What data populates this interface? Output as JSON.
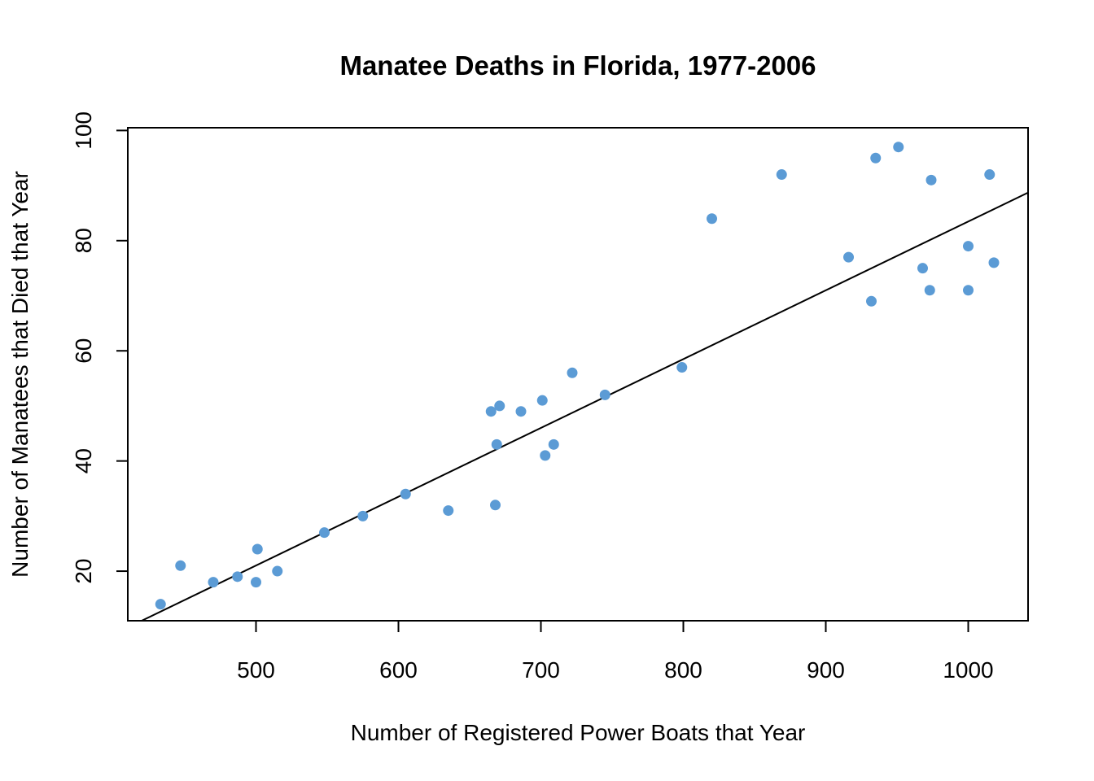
{
  "chart_data": {
    "type": "scatter",
    "title": "Manatee Deaths in Florida, 1977-2006",
    "xlabel": "Number of Registered Power Boats that Year",
    "ylabel": "Number of Manatees that Died that Year",
    "xlim": [
      410,
      1042
    ],
    "ylim": [
      11,
      100.5
    ],
    "xticks": [
      500,
      600,
      700,
      800,
      900,
      1000
    ],
    "xtick_labels": [
      "500",
      "600",
      "700",
      "800",
      "900",
      "1000"
    ],
    "yticks": [
      20,
      40,
      60,
      80,
      100
    ],
    "ytick_labels": [
      "20",
      "40",
      "60",
      "80",
      "100"
    ],
    "grid": false,
    "point_color": "#5b9bd5",
    "line_color": "#000000",
    "regression_line": {
      "intercept": -41.43,
      "slope": 0.1249
    },
    "points": [
      {
        "x": 433,
        "y": 14
      },
      {
        "x": 447,
        "y": 21
      },
      {
        "x": 470,
        "y": 18
      },
      {
        "x": 487,
        "y": 19
      },
      {
        "x": 500,
        "y": 18
      },
      {
        "x": 501,
        "y": 24
      },
      {
        "x": 515,
        "y": 20
      },
      {
        "x": 548,
        "y": 27
      },
      {
        "x": 575,
        "y": 30
      },
      {
        "x": 605,
        "y": 34
      },
      {
        "x": 635,
        "y": 31
      },
      {
        "x": 665,
        "y": 49
      },
      {
        "x": 668,
        "y": 32
      },
      {
        "x": 669,
        "y": 43
      },
      {
        "x": 671,
        "y": 50
      },
      {
        "x": 686,
        "y": 49
      },
      {
        "x": 701,
        "y": 51
      },
      {
        "x": 703,
        "y": 41
      },
      {
        "x": 709,
        "y": 43
      },
      {
        "x": 722,
        "y": 56
      },
      {
        "x": 745,
        "y": 52
      },
      {
        "x": 799,
        "y": 57
      },
      {
        "x": 820,
        "y": 84
      },
      {
        "x": 869,
        "y": 92
      },
      {
        "x": 916,
        "y": 77
      },
      {
        "x": 932,
        "y": 69
      },
      {
        "x": 935,
        "y": 95
      },
      {
        "x": 951,
        "y": 97
      },
      {
        "x": 968,
        "y": 75
      },
      {
        "x": 973,
        "y": 71
      },
      {
        "x": 974,
        "y": 91
      },
      {
        "x": 1000,
        "y": 71
      },
      {
        "x": 1000,
        "y": 79
      },
      {
        "x": 1015,
        "y": 92
      },
      {
        "x": 1018,
        "y": 76
      }
    ]
  }
}
